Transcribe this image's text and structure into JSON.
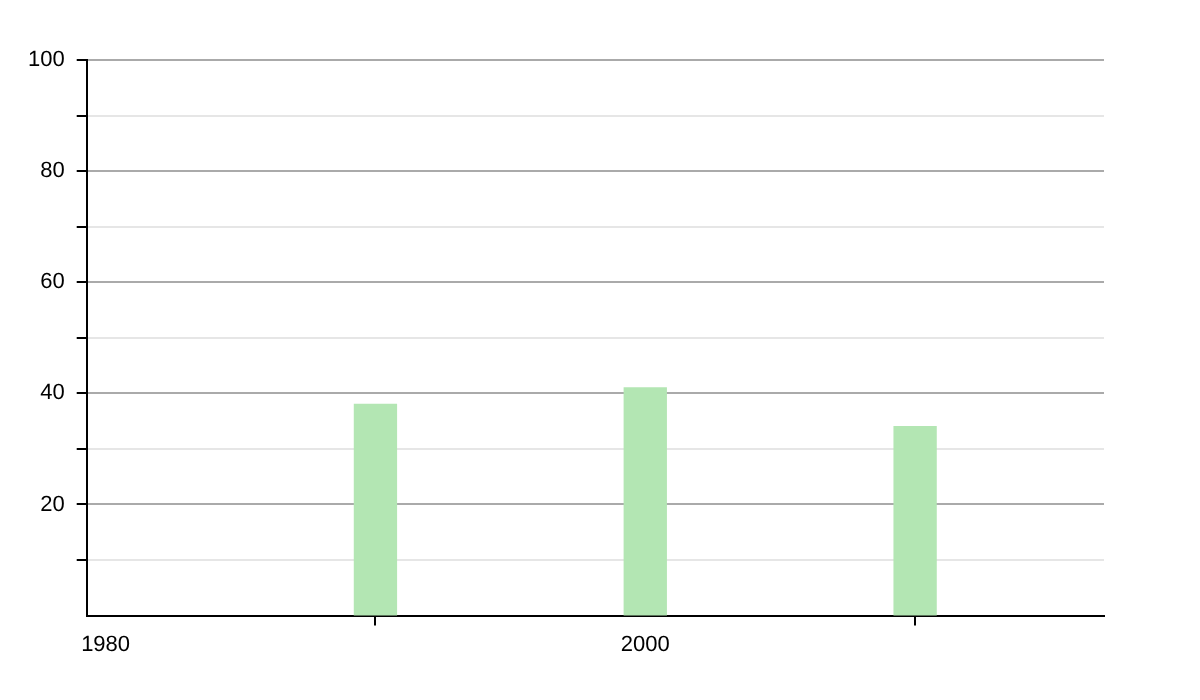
{
  "chart_data": {
    "type": "bar",
    "x": [
      1990,
      2000,
      2010
    ],
    "values": [
      38,
      41,
      34
    ],
    "color": "#b3e6b3",
    "xlim": [
      1979.3,
      2017
    ],
    "xticks": [
      1980,
      2000
    ],
    "ylim": [
      0,
      100
    ],
    "yticks": [
      {
        "value": 10,
        "label": null
      },
      20,
      {
        "value": 30,
        "label": null
      },
      40,
      {
        "value": 50,
        "label": null
      },
      60,
      {
        "value": 70,
        "label": null
      },
      80,
      {
        "value": 90,
        "label": null
      },
      100
    ],
    "grid": "y"
  }
}
